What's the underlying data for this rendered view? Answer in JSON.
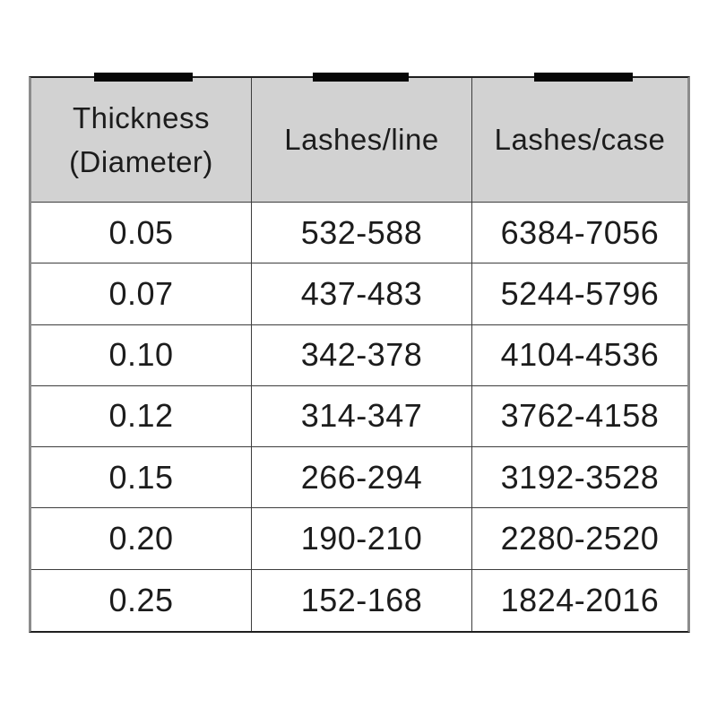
{
  "colors": {
    "header_bg": "#d2d2d2",
    "grid_line": "#3d3d3d",
    "outer_top_bottom": "#1f1f1f",
    "outer_sides": "#8c8c8c",
    "text": "#1c1c1c",
    "tape": "#070707",
    "page_bg": "#ffffff"
  },
  "decorations": {
    "tape_marks_count": 3,
    "tape_mark_description": "black tape strip centered over the top edge of each column"
  },
  "chart_data": {
    "type": "table",
    "title": "",
    "columns": [
      "Thickness (Diameter)",
      "Lashes/line",
      "Lashes/case"
    ],
    "rows": [
      [
        "0.05",
        "532-588",
        "6384-7056"
      ],
      [
        "0.07",
        "437-483",
        "5244-5796"
      ],
      [
        "0.10",
        "342-378",
        "4104-4536"
      ],
      [
        "0.12",
        "314-347",
        "3762-4158"
      ],
      [
        "0.15",
        "266-294",
        "3192-3528"
      ],
      [
        "0.20",
        "190-210",
        "2280-2520"
      ],
      [
        "0.25",
        "152-168",
        "1824-2016"
      ]
    ],
    "layout": {
      "header_background": "#d2d2d2",
      "grid": true,
      "columns_count": 3,
      "data_rows_count": 7
    }
  }
}
